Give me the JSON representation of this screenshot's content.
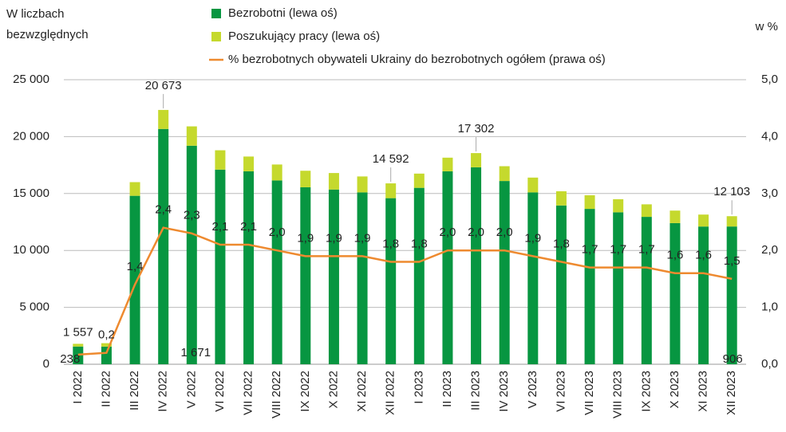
{
  "chart_data": {
    "type": "bar",
    "left_axis_title": [
      "W liczbach",
      "bezwzględnych"
    ],
    "right_axis_title": "w %",
    "categories": [
      "I 2022",
      "II 2022",
      "III 2022",
      "IV 2022",
      "V 2022",
      "VI 2022",
      "VII 2022",
      "VIII 2022",
      "IX 2022",
      "X 2022",
      "XI 2022",
      "XII 2022",
      "I 2023",
      "II 2023",
      "III 2023",
      "IV 2023",
      "V 2023",
      "VI 2023",
      "VII 2023",
      "VIII 2023",
      "IX 2023",
      "X 2023",
      "XI 2023",
      "XII 2023"
    ],
    "series": [
      {
        "name": "Bezrobotni (lewa oś)",
        "color": "#079641",
        "stack": true,
        "values": [
          1557,
          1550,
          14800,
          20673,
          19200,
          17100,
          16950,
          16150,
          15550,
          15350,
          15100,
          14592,
          15500,
          16950,
          17302,
          16100,
          15100,
          13950,
          13650,
          13350,
          12950,
          12400,
          12100,
          12103
        ],
        "value_labels": [
          "1 557",
          null,
          null,
          "20 673",
          null,
          null,
          null,
          null,
          null,
          null,
          null,
          "14 592",
          null,
          null,
          "17 302",
          null,
          null,
          null,
          null,
          null,
          null,
          null,
          null,
          "12 103"
        ]
      },
      {
        "name": "Poszukujący pracy (lewa oś)",
        "color": "#c5d92d",
        "stack": true,
        "values": [
          238,
          300,
          1200,
          1671,
          1700,
          1700,
          1300,
          1400,
          1450,
          1450,
          1400,
          1300,
          1250,
          1200,
          1250,
          1300,
          1300,
          1250,
          1200,
          1150,
          1100,
          1100,
          1050,
          906
        ],
        "value_labels": [
          "238",
          null,
          null,
          "1 671",
          null,
          null,
          null,
          null,
          null,
          null,
          null,
          null,
          null,
          null,
          null,
          null,
          null,
          null,
          null,
          null,
          null,
          null,
          null,
          "906"
        ]
      },
      {
        "name": "% bezrobotnych obywateli Ukrainy do bezrobotnych ogółem (prawa oś)",
        "color": "#ee8a2f",
        "type": "line",
        "axis": "y2",
        "values": [
          0.17,
          0.2,
          1.4,
          2.4,
          2.3,
          2.1,
          2.1,
          2.0,
          1.9,
          1.9,
          1.9,
          1.8,
          1.8,
          2.0,
          2.0,
          2.0,
          1.9,
          1.8,
          1.7,
          1.7,
          1.7,
          1.6,
          1.6,
          1.5
        ],
        "value_labels": [
          null,
          "0,2",
          "1,4",
          "2,4",
          "2,3",
          "2,1",
          "2,1",
          "2,0",
          "1,9",
          "1,9",
          "1,9",
          "1,8",
          "1,8",
          "2,0",
          "2,0",
          "2,0",
          "1,9",
          "1,8",
          "1,7",
          "1,7",
          "1,7",
          "1,6",
          "1,6",
          "1,5"
        ]
      }
    ],
    "ylim": [
      0,
      25000
    ],
    "yticks": [
      0,
      {
        "value": 5000,
        "label": "5 000"
      },
      {
        "value": 10000,
        "label": "10 000"
      },
      {
        "value": 15000,
        "label": "15 000"
      },
      {
        "value": 20000,
        "label": "20 000"
      },
      {
        "value": 25000,
        "label": "25 000"
      }
    ],
    "y2lim": [
      0,
      5
    ],
    "y2ticks": [
      {
        "value": 0,
        "label": "0,0"
      },
      {
        "value": 1,
        "label": "1,0"
      },
      {
        "value": 2,
        "label": "2,0"
      },
      {
        "value": 3,
        "label": "3,0"
      },
      {
        "value": 4,
        "label": "4,0"
      },
      {
        "value": 5,
        "label": "5,0"
      }
    ],
    "grid": true
  }
}
